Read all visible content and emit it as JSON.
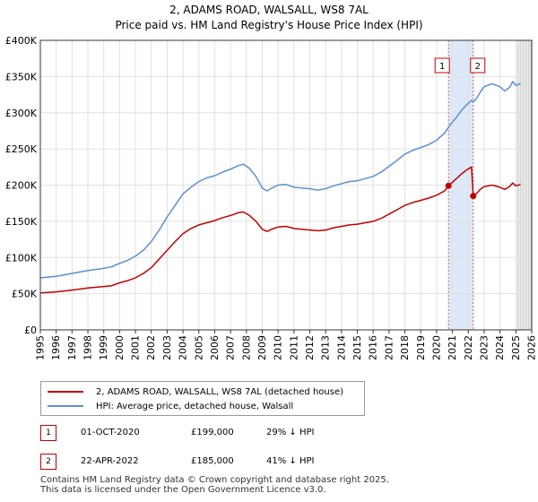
{
  "title_line1": "2, ADAMS ROAD, WALSALL, WS8 7AL",
  "title_line2": "Price paid vs. HM Land Registry's House Price Index (HPI)",
  "chart_data": {
    "type": "line",
    "xlim": [
      1995,
      2026
    ],
    "ylim": [
      0,
      400000
    ],
    "x_ticks": [
      "1995",
      "1996",
      "1997",
      "1998",
      "1999",
      "2000",
      "2001",
      "2002",
      "2003",
      "2004",
      "2005",
      "2006",
      "2007",
      "2008",
      "2009",
      "2010",
      "2011",
      "2012",
      "2013",
      "2014",
      "2015",
      "2016",
      "2017",
      "2018",
      "2019",
      "2020",
      "2021",
      "2022",
      "2023",
      "2024",
      "2025",
      "2026"
    ],
    "y_ticks": [
      {
        "value": 0,
        "label": "£0"
      },
      {
        "value": 50000,
        "label": "£50K"
      },
      {
        "value": 100000,
        "label": "£100K"
      },
      {
        "value": 150000,
        "label": "£150K"
      },
      {
        "value": 200000,
        "label": "£200K"
      },
      {
        "value": 250000,
        "label": "£250K"
      },
      {
        "value": 300000,
        "label": "£300K"
      },
      {
        "value": 350000,
        "label": "£350K"
      },
      {
        "value": 400000,
        "label": "£400K"
      }
    ],
    "grid": true,
    "shaded_range": [
      2020.75,
      2022.31
    ],
    "forecast_start": 2025.0,
    "series": [
      {
        "name": "2, ADAMS ROAD, WALSALL, WS8 7AL (detached house)",
        "color": "#c00000",
        "points": [
          [
            1995.0,
            51000
          ],
          [
            1996.0,
            52500
          ],
          [
            1997.0,
            55000
          ],
          [
            1998.0,
            58000
          ],
          [
            1999.0,
            60000
          ],
          [
            1999.5,
            61000
          ],
          [
            2000.0,
            65000
          ],
          [
            2000.5,
            68000
          ],
          [
            2001.0,
            72000
          ],
          [
            2001.5,
            78000
          ],
          [
            2002.0,
            86000
          ],
          [
            2002.5,
            98000
          ],
          [
            2003.0,
            110000
          ],
          [
            2003.5,
            122000
          ],
          [
            2004.0,
            133000
          ],
          [
            2004.5,
            140000
          ],
          [
            2005.0,
            145000
          ],
          [
            2005.5,
            148000
          ],
          [
            2006.0,
            151000
          ],
          [
            2006.5,
            155000
          ],
          [
            2007.0,
            158000
          ],
          [
            2007.5,
            162000
          ],
          [
            2007.8,
            163000
          ],
          [
            2008.2,
            158000
          ],
          [
            2008.6,
            150000
          ],
          [
            2009.0,
            139000
          ],
          [
            2009.3,
            136000
          ],
          [
            2009.7,
            140000
          ],
          [
            2010.0,
            142000
          ],
          [
            2010.5,
            143000
          ],
          [
            2011.0,
            140000
          ],
          [
            2011.5,
            139000
          ],
          [
            2012.0,
            138000
          ],
          [
            2012.5,
            137000
          ],
          [
            2013.0,
            138000
          ],
          [
            2013.5,
            141000
          ],
          [
            2014.0,
            143000
          ],
          [
            2014.5,
            145000
          ],
          [
            2015.0,
            146000
          ],
          [
            2015.5,
            148000
          ],
          [
            2016.0,
            150000
          ],
          [
            2016.5,
            154000
          ],
          [
            2017.0,
            160000
          ],
          [
            2017.5,
            166000
          ],
          [
            2018.0,
            172000
          ],
          [
            2018.5,
            176000
          ],
          [
            2019.0,
            179000
          ],
          [
            2019.5,
            182000
          ],
          [
            2020.0,
            186000
          ],
          [
            2020.5,
            192000
          ],
          [
            2020.75,
            199000
          ],
          [
            2021.0,
            204000
          ],
          [
            2021.3,
            210000
          ],
          [
            2021.6,
            216000
          ],
          [
            2021.9,
            221000
          ],
          [
            2022.2,
            225000
          ],
          [
            2022.31,
            185000
          ],
          [
            2022.5,
            188000
          ],
          [
            2022.8,
            195000
          ],
          [
            2023.0,
            198000
          ],
          [
            2023.5,
            200000
          ],
          [
            2024.0,
            197000
          ],
          [
            2024.3,
            194000
          ],
          [
            2024.6,
            198000
          ],
          [
            2024.8,
            203000
          ],
          [
            2025.0,
            199000
          ],
          [
            2025.3,
            201000
          ]
        ]
      },
      {
        "name": "HPI: Average price, detached house, Walsall",
        "color": "#5b8fd0",
        "points": [
          [
            1995.0,
            72000
          ],
          [
            1996.0,
            74000
          ],
          [
            1997.0,
            78000
          ],
          [
            1998.0,
            82000
          ],
          [
            1999.0,
            85000
          ],
          [
            1999.5,
            87000
          ],
          [
            2000.0,
            92000
          ],
          [
            2000.5,
            96000
          ],
          [
            2001.0,
            102000
          ],
          [
            2001.5,
            110000
          ],
          [
            2002.0,
            122000
          ],
          [
            2002.5,
            138000
          ],
          [
            2003.0,
            156000
          ],
          [
            2003.5,
            172000
          ],
          [
            2004.0,
            188000
          ],
          [
            2004.5,
            197000
          ],
          [
            2005.0,
            205000
          ],
          [
            2005.5,
            210000
          ],
          [
            2006.0,
            213000
          ],
          [
            2006.5,
            218000
          ],
          [
            2007.0,
            222000
          ],
          [
            2007.5,
            227000
          ],
          [
            2007.8,
            229000
          ],
          [
            2008.2,
            223000
          ],
          [
            2008.6,
            212000
          ],
          [
            2009.0,
            196000
          ],
          [
            2009.3,
            192000
          ],
          [
            2009.7,
            197000
          ],
          [
            2010.0,
            200000
          ],
          [
            2010.5,
            201000
          ],
          [
            2011.0,
            197000
          ],
          [
            2011.5,
            196000
          ],
          [
            2012.0,
            195000
          ],
          [
            2012.5,
            193000
          ],
          [
            2013.0,
            195000
          ],
          [
            2013.5,
            199000
          ],
          [
            2014.0,
            202000
          ],
          [
            2014.5,
            205000
          ],
          [
            2015.0,
            206000
          ],
          [
            2015.5,
            209000
          ],
          [
            2016.0,
            212000
          ],
          [
            2016.5,
            218000
          ],
          [
            2017.0,
            226000
          ],
          [
            2017.5,
            234000
          ],
          [
            2018.0,
            243000
          ],
          [
            2018.5,
            248000
          ],
          [
            2019.0,
            252000
          ],
          [
            2019.5,
            256000
          ],
          [
            2020.0,
            262000
          ],
          [
            2020.5,
            272000
          ],
          [
            2020.75,
            280000
          ],
          [
            2021.0,
            287000
          ],
          [
            2021.3,
            295000
          ],
          [
            2021.6,
            304000
          ],
          [
            2021.9,
            311000
          ],
          [
            2022.2,
            317000
          ],
          [
            2022.31,
            315000
          ],
          [
            2022.5,
            319000
          ],
          [
            2022.8,
            330000
          ],
          [
            2023.0,
            336000
          ],
          [
            2023.5,
            340000
          ],
          [
            2024.0,
            336000
          ],
          [
            2024.3,
            330000
          ],
          [
            2024.6,
            335000
          ],
          [
            2024.8,
            343000
          ],
          [
            2025.0,
            338000
          ],
          [
            2025.3,
            340000
          ]
        ]
      }
    ],
    "sales": [
      {
        "id": "1",
        "x": 2020.75,
        "price": 199000
      },
      {
        "id": "2",
        "x": 2022.31,
        "price": 185000
      }
    ]
  },
  "legend": {
    "property_label": "2, ADAMS ROAD, WALSALL, WS8 7AL (detached house)",
    "hpi_label": "HPI: Average price, detached house, Walsall",
    "property_color": "#c00000",
    "hpi_color": "#5b8fd0"
  },
  "transactions": [
    {
      "id": "1",
      "date": "01-OCT-2020",
      "price": "£199,000",
      "hpi": "29% ↓ HPI"
    },
    {
      "id": "2",
      "date": "22-APR-2022",
      "price": "£185,000",
      "hpi": "41% ↓ HPI"
    }
  ],
  "footer_line1": "Contains HM Land Registry data © Crown copyright and database right 2025.",
  "footer_line2": "This data is licensed under the Open Government Licence v3.0."
}
